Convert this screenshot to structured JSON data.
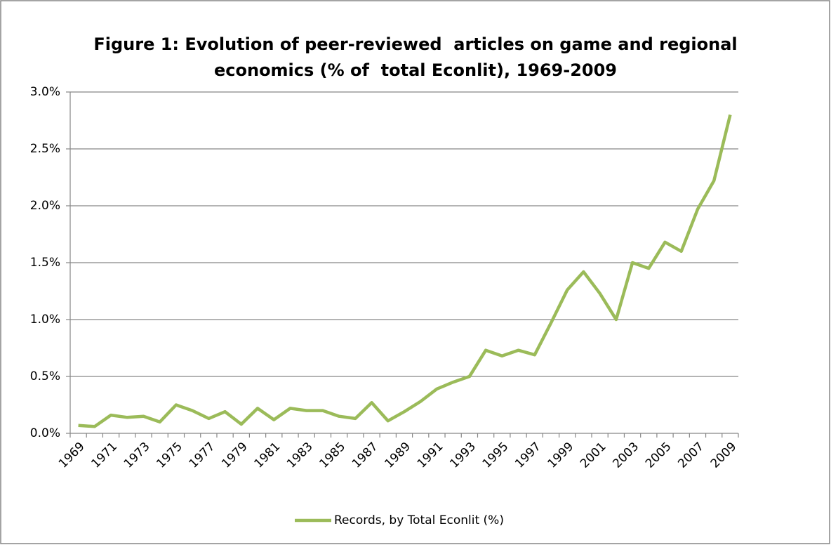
{
  "chart_data": {
    "type": "line",
    "title": [
      "Figure 1: Evolution of peer-reviewed  articles on game and regional",
      "economics (% of  total Econlit), 1969-2009"
    ],
    "categories": [
      "1969",
      null,
      "1971",
      null,
      "1973",
      null,
      "1975",
      null,
      "1977",
      null,
      "1979",
      null,
      "1981",
      null,
      "1983",
      null,
      "1985",
      null,
      "1987",
      null,
      "1989",
      null,
      "1991",
      null,
      "1993",
      null,
      "1995",
      null,
      "1997",
      null,
      "1999",
      null,
      "2001",
      null,
      "2003",
      null,
      "2005",
      null,
      "2007",
      null,
      "2009"
    ],
    "series": [
      {
        "name": "Records, by Total Econlit (%)",
        "color": "#9bbb59",
        "values": [
          0.07,
          0.06,
          0.16,
          0.14,
          0.15,
          0.1,
          0.25,
          0.2,
          0.13,
          0.19,
          0.08,
          0.22,
          0.12,
          0.22,
          0.2,
          0.2,
          0.15,
          0.13,
          0.27,
          0.11,
          0.19,
          0.28,
          0.39,
          0.45,
          0.5,
          0.73,
          0.68,
          0.73,
          0.69,
          0.97,
          1.26,
          1.42,
          1.23,
          1.0,
          1.5,
          1.45,
          1.68,
          1.6,
          1.97,
          2.22,
          2.8
        ]
      }
    ],
    "ylim": [
      0,
      3
    ],
    "yticks": [
      {
        "value": 0,
        "label": "0.0%"
      },
      {
        "value": 0.5,
        "label": "0.5%"
      },
      {
        "value": 1,
        "label": "1.0%"
      },
      {
        "value": 1.5,
        "label": "1.5%"
      },
      {
        "value": 2,
        "label": "2.0%"
      },
      {
        "value": 2.5,
        "label": "2.5%"
      },
      {
        "value": 3,
        "label": "3.0%"
      }
    ],
    "grid": true,
    "legend": "bottom"
  }
}
